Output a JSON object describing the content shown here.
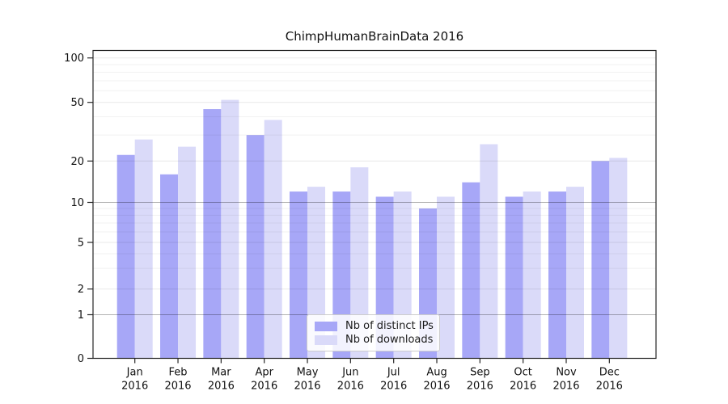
{
  "chart_data": {
    "type": "bar",
    "title": "ChimpHumanBrainData 2016",
    "categories": [
      "Jan",
      "Feb",
      "Mar",
      "Apr",
      "May",
      "Jun",
      "Jul",
      "Aug",
      "Sep",
      "Oct",
      "Nov",
      "Dec"
    ],
    "xtick_year_line": "2016",
    "series": [
      {
        "name": "Nb of distinct IPs",
        "color": "#a7a7f7",
        "values": [
          22,
          16,
          45,
          30,
          12,
          12,
          11,
          9,
          14,
          11,
          12,
          20
        ]
      },
      {
        "name": "Nb of downloads",
        "color": "#dadaf9",
        "values": [
          28,
          25,
          52,
          38,
          13,
          18,
          12,
          11,
          26,
          12,
          13,
          21
        ]
      }
    ],
    "xlabel": "",
    "ylabel": "",
    "yscale": "log (with 0 baseline segment)",
    "yticks": [
      100,
      50,
      20,
      10,
      5,
      2,
      1,
      0
    ],
    "ylim": [
      0,
      112
    ],
    "grid": true,
    "legend_position": "lower center"
  }
}
